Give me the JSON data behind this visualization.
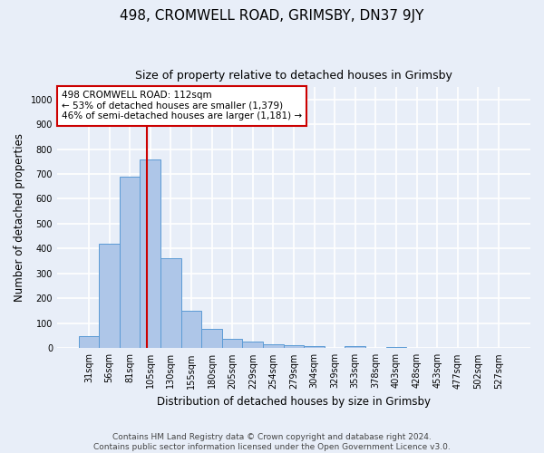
{
  "title": "498, CROMWELL ROAD, GRIMSBY, DN37 9JY",
  "subtitle": "Size of property relative to detached houses in Grimsby",
  "xlabel": "Distribution of detached houses by size in Grimsby",
  "ylabel": "Number of detached properties",
  "bar_labels": [
    "31sqm",
    "56sqm",
    "81sqm",
    "105sqm",
    "130sqm",
    "155sqm",
    "180sqm",
    "205sqm",
    "229sqm",
    "254sqm",
    "279sqm",
    "304sqm",
    "329sqm",
    "353sqm",
    "378sqm",
    "403sqm",
    "428sqm",
    "453sqm",
    "477sqm",
    "502sqm",
    "527sqm"
  ],
  "bar_values": [
    48,
    420,
    688,
    757,
    362,
    152,
    76,
    38,
    27,
    17,
    13,
    7,
    2,
    8,
    0,
    5,
    0,
    0,
    0,
    0,
    0
  ],
  "bar_color": "#aec6e8",
  "bar_edge_color": "#5b9bd5",
  "annotation_text": "498 CROMWELL ROAD: 112sqm\n← 53% of detached houses are smaller (1,379)\n46% of semi-detached houses are larger (1,181) →",
  "annotation_box_color": "#ffffff",
  "annotation_box_edge": "#cc0000",
  "vline_color": "#cc0000",
  "vline_x_index": 2.83,
  "ylim": [
    0,
    1050
  ],
  "yticks": [
    0,
    100,
    200,
    300,
    400,
    500,
    600,
    700,
    800,
    900,
    1000
  ],
  "footer_line1": "Contains HM Land Registry data © Crown copyright and database right 2024.",
  "footer_line2": "Contains public sector information licensed under the Open Government Licence v3.0.",
  "bg_color": "#e8eef8",
  "plot_bg_color": "#e8eef8",
  "grid_color": "#ffffff",
  "title_fontsize": 11,
  "subtitle_fontsize": 9,
  "label_fontsize": 8.5,
  "tick_fontsize": 7,
  "annotation_fontsize": 7.5,
  "footer_fontsize": 6.5
}
